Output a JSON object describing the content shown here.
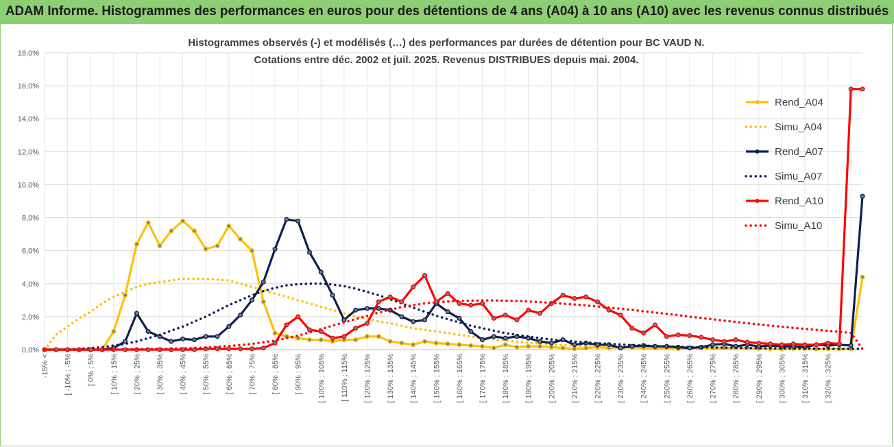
{
  "banner": {
    "text": "ADAM Informe. Histogrammes des performances en euros pour des détentions de 4 ans (A04) à 10 ans (A10) avec les revenus connus distribués",
    "background": "#8ece74"
  },
  "chart_data": {
    "type": "line",
    "title": "Histogrammes observés (-) et modélisés (…) des performances par durées de détention pour BC VAUD N.",
    "subtitle": "Cotations entre déc. 2002 et juil. 2025. Revenus DISTRIBUES depuis mai. 2004.",
    "xlabel": "",
    "ylabel": "",
    "ylim": [
      0,
      18
    ],
    "y_ticks": [
      "0,0%",
      "2,0%",
      "4,0%",
      "6,0%",
      "8,0%",
      "10,0%",
      "12,0%",
      "14,0%",
      "16,0%",
      "18,0%"
    ],
    "grid": true,
    "legend_position": "right",
    "x_tick_labels": [
      "-15% <",
      "[ -10% ; -5%",
      "[ 0% ; 5%",
      "[ 10% ; 15%",
      "[ 20% ; 25%",
      "[ 30% ; 35%",
      "[ 40% ; 45%",
      "[ 50% ; 55%",
      "[ 60% ; 65%",
      "[ 70% ; 75%",
      "[ 80% ; 85%",
      "[ 90% ; 95%",
      "[ 100% ; 105%",
      "[ 110% ; 115%",
      "[ 120% ; 125%",
      "[ 130% ; 135%",
      "[ 140% ; 145%",
      "[ 150% ; 155%",
      "[ 160% ; 165%",
      "[ 170% ; 175%",
      "[ 180% ; 185%",
      "[ 190% ; 195%",
      "[ 200% ; 205%",
      "[ 210% ; 215%",
      "[ 220% ; 225%",
      "[ 230% ; 235%",
      "[ 240% ; 245%",
      "[ 250% ; 255%",
      "[ 260% ; 265%",
      "[ 270% ; 275%",
      "[ 280% ; 285%",
      "[ 290% ; 295%",
      "[ 300% ; 305%",
      "[ 310% ; 315%",
      "[ 320% ; 325%"
    ],
    "series": [
      {
        "name": "Rend_A04",
        "style": "solid",
        "markers": true,
        "color": "#ffc000",
        "values": [
          0,
          0,
          0,
          0,
          0,
          0,
          1.1,
          3.3,
          6.4,
          7.7,
          6.3,
          7.2,
          7.8,
          7.2,
          6.1,
          6.3,
          7.5,
          6.7,
          6.0,
          2.9,
          1.0,
          0.8,
          0.7,
          0.6,
          0.6,
          0.5,
          0.6,
          0.6,
          0.8,
          0.8,
          0.5,
          0.4,
          0.3,
          0.5,
          0.4,
          0.35,
          0.3,
          0.25,
          0.2,
          0.1,
          0.3,
          0.15,
          0.2,
          0.2,
          0.15,
          0.1,
          0.05,
          0.1,
          0.15,
          0.1,
          0.15,
          0.15,
          0.1,
          0.1,
          0.1,
          0.05,
          0.1,
          0.1,
          0.1,
          0.1,
          0.1,
          0.1,
          0.05,
          0.05,
          0.05,
          0.05,
          0.05,
          0.05,
          0.05,
          0.05,
          0.05,
          4.4
        ]
      },
      {
        "name": "Simu_A04",
        "style": "dotted",
        "markers": false,
        "color": "#ffc000",
        "values": [
          0.0,
          0.9,
          1.4,
          1.9,
          2.3,
          2.8,
          3.2,
          3.5,
          3.8,
          4.0,
          4.1,
          4.2,
          4.3,
          4.3,
          4.3,
          4.25,
          4.2,
          4.0,
          3.8,
          3.6,
          3.4,
          3.2,
          3.0,
          2.8,
          2.6,
          2.4,
          2.2,
          2.0,
          1.9,
          1.7,
          1.6,
          1.45,
          1.3,
          1.2,
          1.1,
          1.0,
          0.9,
          0.8,
          0.7,
          0.62,
          0.55,
          0.48,
          0.42,
          0.37,
          0.32,
          0.28,
          0.25,
          0.22,
          0.19,
          0.16,
          0.14,
          0.12,
          0.1,
          0.09,
          0.08,
          0.07,
          0.06,
          0.05,
          0.05,
          0.04,
          0.04,
          0.03,
          0.03,
          0.03,
          0.02,
          0.02,
          0.02,
          0.02,
          0.02,
          0.02,
          0.02,
          0.01
        ]
      },
      {
        "name": "Rend_A07",
        "style": "solid",
        "markers": true,
        "color": "#0d2050",
        "values": [
          0,
          0,
          0,
          0,
          0,
          0,
          0.1,
          0.5,
          2.2,
          1.1,
          0.8,
          0.5,
          0.65,
          0.6,
          0.8,
          0.8,
          1.4,
          2.1,
          3.0,
          4.1,
          6.1,
          7.9,
          7.8,
          5.9,
          4.7,
          3.3,
          1.8,
          2.4,
          2.5,
          2.5,
          2.4,
          2.0,
          1.7,
          1.8,
          2.8,
          2.3,
          1.9,
          1.1,
          0.6,
          0.8,
          0.7,
          0.8,
          0.7,
          0.5,
          0.4,
          0.6,
          0.3,
          0.4,
          0.3,
          0.3,
          0.1,
          0.2,
          0.25,
          0.2,
          0.2,
          0.15,
          0.1,
          0.15,
          0.3,
          0.35,
          0.2,
          0.3,
          0.2,
          0.25,
          0.2,
          0.2,
          0.15,
          0.3,
          0.25,
          0.3,
          0.25,
          9.3
        ]
      },
      {
        "name": "Simu_A07",
        "style": "dotted",
        "markers": false,
        "color": "#0d2050",
        "values": [
          0.0,
          0.0,
          0.0,
          0.05,
          0.1,
          0.15,
          0.25,
          0.35,
          0.5,
          0.7,
          0.9,
          1.15,
          1.4,
          1.7,
          2.0,
          2.35,
          2.7,
          3.0,
          3.3,
          3.55,
          3.75,
          3.9,
          3.97,
          4.0,
          4.0,
          3.95,
          3.85,
          3.7,
          3.5,
          3.3,
          3.05,
          2.8,
          2.55,
          2.3,
          2.05,
          1.85,
          1.65,
          1.45,
          1.3,
          1.15,
          1.0,
          0.9,
          0.8,
          0.7,
          0.62,
          0.55,
          0.49,
          0.44,
          0.39,
          0.35,
          0.31,
          0.28,
          0.25,
          0.22,
          0.2,
          0.18,
          0.16,
          0.15,
          0.13,
          0.12,
          0.11,
          0.1,
          0.09,
          0.08,
          0.08,
          0.07,
          0.07,
          0.06,
          0.06,
          0.05,
          0.05,
          0.05
        ]
      },
      {
        "name": "Rend_A10",
        "style": "solid",
        "markers": true,
        "color": "#ff0000",
        "values": [
          0,
          0,
          0,
          0,
          0,
          0,
          0,
          0,
          0,
          0,
          0,
          0,
          0,
          0,
          0.05,
          0.05,
          0.05,
          0.05,
          0.05,
          0.1,
          0.4,
          1.5,
          2.0,
          1.2,
          1.1,
          0.7,
          0.8,
          1.3,
          1.6,
          2.9,
          3.2,
          2.9,
          3.8,
          4.5,
          2.9,
          3.4,
          2.8,
          2.7,
          2.8,
          1.9,
          2.1,
          1.8,
          2.4,
          2.2,
          2.8,
          3.3,
          3.1,
          3.2,
          2.9,
          2.4,
          2.1,
          1.3,
          1.0,
          1.5,
          0.8,
          0.9,
          0.85,
          0.75,
          0.6,
          0.5,
          0.6,
          0.45,
          0.4,
          0.35,
          0.3,
          0.35,
          0.3,
          0.3,
          0.4,
          0.35,
          15.8,
          15.8
        ]
      },
      {
        "name": "Simu_A10",
        "style": "dotted",
        "markers": false,
        "color": "#ff0000",
        "values": [
          0,
          0,
          0,
          0,
          0,
          0,
          0,
          0.02,
          0.03,
          0.04,
          0.05,
          0.06,
          0.08,
          0.1,
          0.13,
          0.17,
          0.22,
          0.28,
          0.35,
          0.45,
          0.55,
          0.7,
          0.85,
          1.05,
          1.25,
          1.45,
          1.65,
          1.85,
          2.05,
          2.25,
          2.42,
          2.58,
          2.7,
          2.8,
          2.87,
          2.92,
          2.95,
          2.97,
          2.98,
          2.98,
          2.97,
          2.95,
          2.92,
          2.88,
          2.84,
          2.79,
          2.74,
          2.68,
          2.62,
          2.55,
          2.48,
          2.41,
          2.33,
          2.25,
          2.17,
          2.09,
          2.0,
          1.92,
          1.84,
          1.76,
          1.68,
          1.6,
          1.53,
          1.46,
          1.39,
          1.32,
          1.26,
          1.2,
          1.14,
          1.08,
          1.02,
          0.05
        ]
      }
    ]
  }
}
